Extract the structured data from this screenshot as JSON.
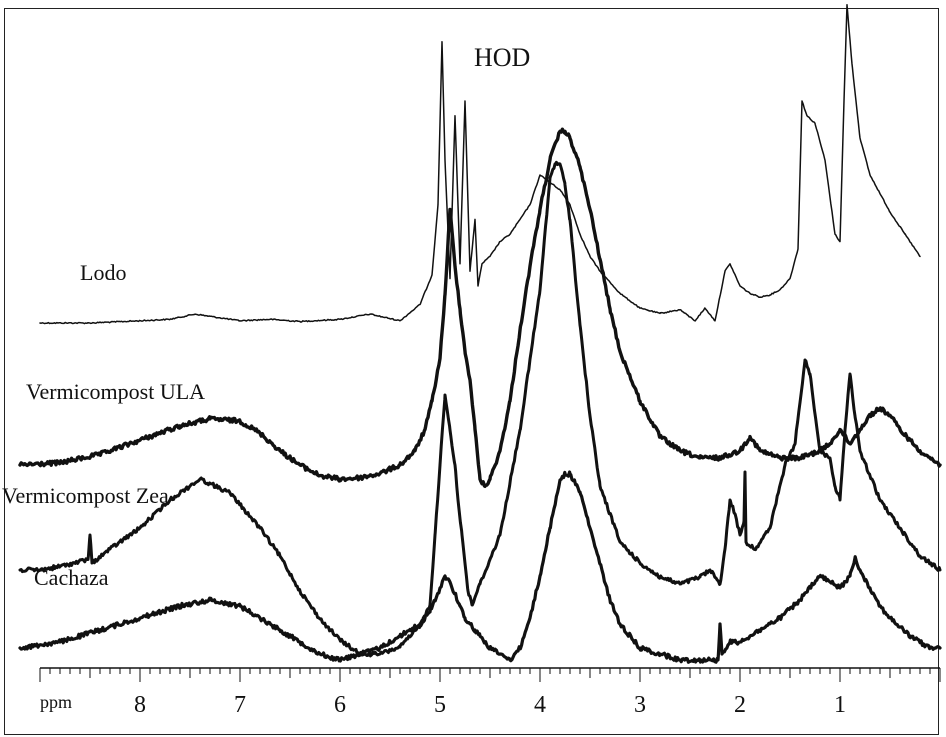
{
  "chart_data": {
    "type": "line",
    "title": "",
    "xlabel": "ppm",
    "ylabel": "",
    "x_reversed": true,
    "xlim": [
      9.0,
      0.0
    ],
    "x_ticks": [
      "8",
      "7",
      "6",
      "5",
      "4",
      "3",
      "2",
      "1"
    ],
    "grid": false,
    "legend": "none (series names printed beside each trace)",
    "annotations": [
      {
        "text": "HOD",
        "x": 4.6
      }
    ],
    "series": [
      {
        "name": "Lodo",
        "x": [
          9.0,
          8.5,
          8.0,
          7.7,
          7.45,
          7.2,
          7.0,
          6.7,
          6.4,
          6.0,
          5.7,
          5.4,
          5.2,
          5.08,
          5.02,
          4.98,
          4.95,
          4.9,
          4.85,
          4.8,
          4.75,
          4.7,
          4.65,
          4.62,
          4.58,
          4.5,
          4.4,
          4.3,
          4.2,
          4.1,
          4.0,
          3.9,
          3.8,
          3.7,
          3.6,
          3.5,
          3.4,
          3.2,
          3.0,
          2.8,
          2.6,
          2.45,
          2.35,
          2.25,
          2.15,
          2.1,
          2.0,
          1.9,
          1.8,
          1.7,
          1.6,
          1.5,
          1.42,
          1.38,
          1.33,
          1.25,
          1.15,
          1.05,
          1.0,
          0.96,
          0.93,
          0.88,
          0.8,
          0.7,
          0.5,
          0.35,
          0.2
        ],
        "y": [
          0,
          0,
          0.3,
          0.5,
          1.2,
          0.7,
          0.3,
          0.5,
          0.2,
          0.5,
          1.2,
          0.3,
          2.5,
          6.5,
          16,
          38,
          22,
          6,
          28,
          8,
          30,
          7,
          14,
          5,
          8,
          9,
          11,
          12,
          14,
          16,
          20,
          19,
          18,
          16,
          12,
          9,
          7,
          4,
          2,
          1.3,
          1.8,
          0.3,
          2,
          0.3,
          7,
          8,
          5,
          4,
          3.5,
          3.8,
          4.5,
          6,
          10,
          30,
          28,
          27,
          22,
          12,
          11,
          30,
          43,
          35,
          25,
          20,
          15,
          12,
          9
        ]
      },
      {
        "name": "Vermicompost ULA",
        "x": [
          9.2,
          8.8,
          8.4,
          8.0,
          7.6,
          7.3,
          7.0,
          6.8,
          6.6,
          6.4,
          6.2,
          6.0,
          5.8,
          5.6,
          5.4,
          5.25,
          5.15,
          5.08,
          5.0,
          4.95,
          4.9,
          4.85,
          4.8,
          4.75,
          4.7,
          4.65,
          4.6,
          4.55,
          4.5,
          4.4,
          4.3,
          4.2,
          4.1,
          4.0,
          3.9,
          3.8,
          3.75,
          3.7,
          3.6,
          3.5,
          3.4,
          3.3,
          3.2,
          3.0,
          2.8,
          2.6,
          2.4,
          2.2,
          2.0,
          1.9,
          1.8,
          1.6,
          1.4,
          1.2,
          1.1,
          1.0,
          0.9,
          0.8,
          0.7,
          0.6,
          0.5,
          0.4,
          0.2,
          0.0
        ],
        "y": [
          0,
          0.3,
          1.5,
          3.5,
          5.5,
          6.5,
          6.2,
          4.5,
          2,
          0,
          -1.5,
          -2,
          -1.8,
          -1.2,
          0,
          2,
          5,
          9,
          15,
          24,
          36,
          28,
          22,
          16,
          12,
          5,
          -2,
          -3,
          -2,
          2,
          9,
          19,
          28,
          36,
          43,
          47,
          47,
          46,
          42,
          36,
          29,
          22,
          16,
          9,
          4,
          2,
          1,
          1,
          2,
          4,
          2,
          1,
          1,
          2,
          3,
          5,
          3,
          5,
          7,
          8,
          7,
          5,
          2,
          0
        ]
      },
      {
        "name": "Vermicompost Zea",
        "x": [
          9.2,
          9.0,
          8.8,
          8.52,
          8.5,
          8.48,
          8.3,
          8.0,
          7.7,
          7.4,
          7.1,
          6.8,
          6.6,
          6.4,
          6.2,
          6.0,
          5.8,
          5.6,
          5.4,
          5.2,
          5.1,
          5.05,
          5.0,
          4.95,
          4.9,
          4.85,
          4.82,
          4.78,
          4.72,
          4.68,
          4.6,
          4.4,
          4.2,
          4.0,
          3.9,
          3.85,
          3.8,
          3.75,
          3.7,
          3.6,
          3.5,
          3.4,
          3.2,
          3.0,
          2.8,
          2.6,
          2.4,
          2.3,
          2.2,
          2.15,
          2.1,
          2.05,
          2.0,
          1.96,
          1.95,
          1.94,
          1.85,
          1.7,
          1.55,
          1.45,
          1.35,
          1.3,
          1.2,
          1.1,
          1.05,
          1.0,
          0.95,
          0.9,
          0.85,
          0.8,
          0.6,
          0.4,
          0.2,
          0.0
        ],
        "y": [
          0,
          0,
          0.5,
          1.5,
          5,
          1,
          3,
          6,
          10,
          13,
          11,
          6,
          2,
          -3,
          -7,
          -10,
          -12,
          -12,
          -11,
          -8,
          -5,
          5,
          15,
          25,
          20,
          15,
          10,
          5,
          -3,
          -5,
          -2,
          5,
          20,
          40,
          56,
          58,
          58,
          55,
          50,
          35,
          22,
          12,
          4,
          1,
          -1,
          -2,
          -1,
          0,
          -2,
          3,
          10,
          8,
          5,
          7,
          14,
          4,
          3,
          6,
          15,
          18,
          30,
          28,
          17,
          16,
          12,
          10,
          20,
          28,
          22,
          17,
          10,
          6,
          2,
          0
        ]
      },
      {
        "name": "Cachaza",
        "x": [
          9.2,
          8.8,
          8.4,
          8.0,
          7.6,
          7.3,
          7.0,
          6.8,
          6.6,
          6.4,
          6.2,
          6.0,
          5.8,
          5.6,
          5.4,
          5.2,
          5.1,
          5.05,
          5.0,
          4.95,
          4.9,
          4.85,
          4.8,
          4.75,
          4.7,
          4.65,
          4.6,
          4.55,
          4.5,
          4.4,
          4.3,
          4.2,
          4.1,
          4.0,
          3.9,
          3.8,
          3.75,
          3.7,
          3.6,
          3.5,
          3.4,
          3.3,
          3.2,
          3.0,
          2.8,
          2.6,
          2.4,
          2.22,
          2.2,
          2.18,
          2.1,
          2.0,
          1.9,
          1.8,
          1.6,
          1.4,
          1.3,
          1.2,
          1.1,
          1.0,
          0.9,
          0.85,
          0.8,
          0.7,
          0.6,
          0.5,
          0.3,
          0.1,
          0.0
        ],
        "y": [
          0,
          1,
          3,
          5,
          7,
          8,
          7,
          5,
          3,
          1,
          -1,
          -2,
          -1,
          0,
          2,
          4,
          6,
          8,
          10,
          12,
          11,
          9,
          7,
          5,
          4,
          3,
          2,
          1,
          0,
          -1,
          -2,
          0,
          5,
          12,
          20,
          28,
          29,
          29,
          26,
          20,
          14,
          8,
          4,
          0,
          -1,
          -2,
          -2,
          -2,
          4,
          -1,
          1,
          1,
          2,
          3,
          5,
          8,
          10,
          12,
          11,
          10,
          12,
          15,
          13,
          10,
          7,
          5,
          2,
          0,
          0
        ]
      }
    ]
  }
}
